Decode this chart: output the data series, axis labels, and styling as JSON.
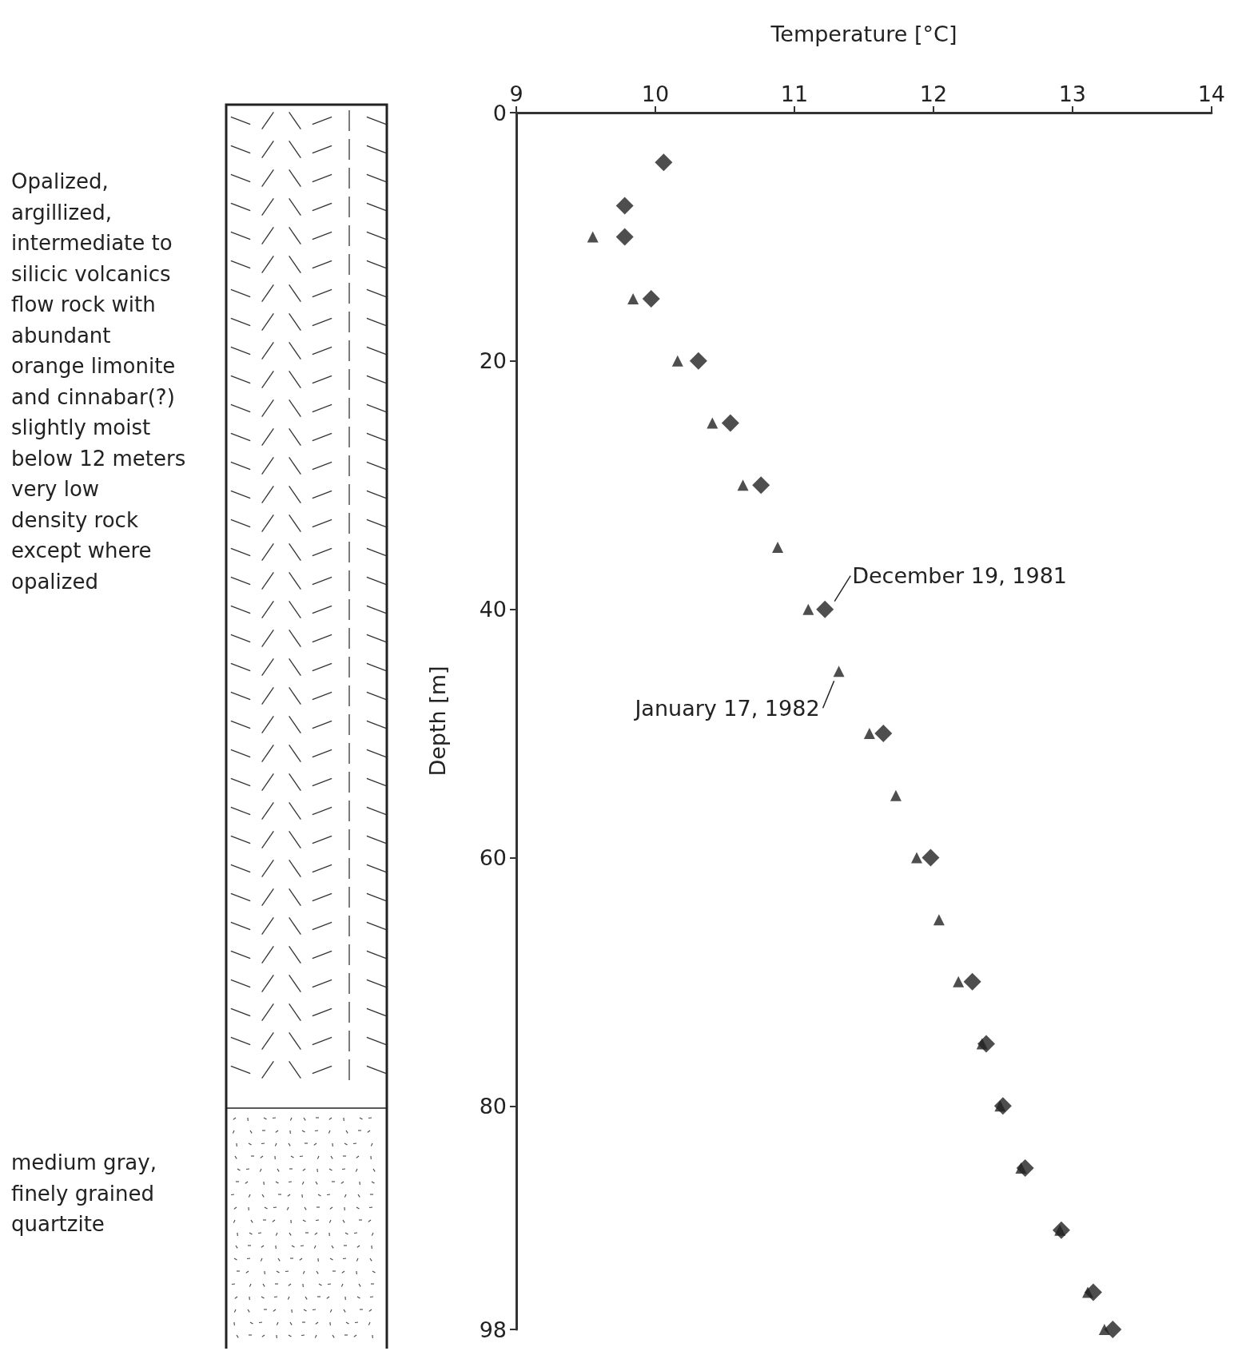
{
  "chart_data": {
    "type": "scatter",
    "xlabel": "Temperature [°C]",
    "ylabel": "Depth [m]",
    "xlim": [
      9,
      14
    ],
    "xticks": [
      9,
      10,
      11,
      12,
      13,
      14
    ],
    "ylim": [
      98,
      0
    ],
    "yticks": [
      0,
      20,
      40,
      60,
      80,
      98
    ],
    "grid": false,
    "series": [
      {
        "marker": "diamond",
        "color": "#222222",
        "x": [
          10.06,
          9.78,
          9.78,
          9.97,
          10.31,
          10.54,
          10.76,
          11.22,
          11.64,
          11.98,
          12.28,
          12.38,
          12.5,
          12.66,
          12.92,
          13.15,
          13.29
        ],
        "values": [
          4,
          7.5,
          10,
          15,
          20,
          25,
          30,
          40,
          50,
          60,
          70,
          75,
          80,
          85,
          90,
          95,
          98
        ]
      },
      {
        "marker": "triangle",
        "color": "#222222",
        "x": [
          9.55,
          9.84,
          10.16,
          10.41,
          10.63,
          10.88,
          11.1,
          11.32,
          11.54,
          11.73,
          11.88,
          12.04,
          12.18,
          12.35,
          12.48,
          12.63,
          12.91,
          13.11,
          13.23
        ],
        "values": [
          10,
          15,
          20,
          25,
          30,
          35,
          40,
          45,
          50,
          55,
          60,
          65,
          70,
          75,
          80,
          85,
          90,
          95,
          98
        ]
      }
    ],
    "annotations": [
      "Opalized,\nargillized,\nintermediate to\nsilicic volcanics\nflow rock with\nabundant\norange limonite\nand cinnabar(?)\nslightly moist\nbelow 12 meters\nvery low\ndensity rock\nexcept where\nopalized",
      "medium gray,\nfinely grained\nquartzite",
      {
        "text": "December 19, 1981",
        "x": 11.22,
        "y": 40
      },
      {
        "text": "January 17, 1982",
        "x": 11.32,
        "y": 45
      }
    ]
  }
}
